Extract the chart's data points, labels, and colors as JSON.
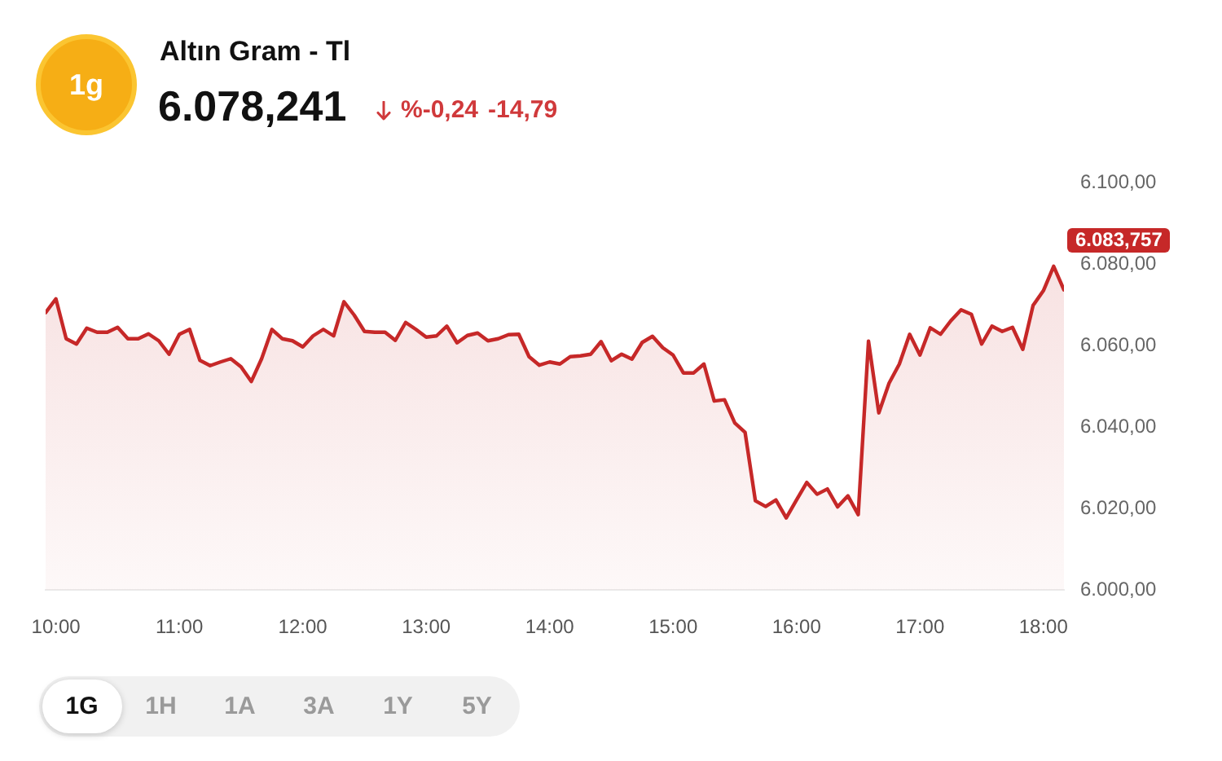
{
  "chart_data": {
    "type": "area",
    "title": "Altın Gram - Tl",
    "subtitle": "6.078,241",
    "annotations": [
      "1g",
      "%-0,24",
      "-14,79",
      "6.083,757",
      "1G",
      "1H",
      "1A",
      "3A",
      "1Y",
      "5Y"
    ],
    "x": [
      9.9167,
      10,
      10.0833,
      10.1667,
      10.25,
      10.3333,
      10.4167,
      10.5,
      10.5833,
      10.6667,
      10.75,
      10.8333,
      10.9167,
      11,
      11.0833,
      11.1667,
      11.25,
      11.3333,
      11.4167,
      11.5,
      11.5833,
      11.6667,
      11.75,
      11.8333,
      11.9167,
      12,
      12.0833,
      12.1667,
      12.25,
      12.3333,
      12.4167,
      12.5,
      12.5833,
      12.6667,
      12.75,
      12.8333,
      12.9167,
      13,
      13.0833,
      13.1667,
      13.25,
      13.3333,
      13.4167,
      13.5,
      13.5833,
      13.6667,
      13.75,
      13.8333,
      13.9167,
      14,
      14.0833,
      14.1667,
      14.25,
      14.3333,
      14.4167,
      14.5,
      14.5833,
      14.6667,
      14.75,
      14.8333,
      14.9167,
      15,
      15.0833,
      15.1667,
      15.25,
      15.3333,
      15.4167,
      15.5,
      15.5833,
      15.6667,
      15.75,
      15.8333,
      15.9167,
      16,
      16.0833,
      16.1667,
      16.25,
      16.3333,
      16.4167,
      16.5,
      16.5833,
      16.6667,
      16.75,
      16.8333,
      16.9167,
      17,
      17.0833,
      17.1667,
      17.25,
      17.3333,
      17.4167,
      17.5,
      17.5833,
      17.6667,
      17.75,
      17.8333,
      17.9167,
      18,
      18.0833,
      18.1667
    ],
    "series": [
      {
        "color": "#c62828",
        "values": [
          6068.1,
          6071.5,
          6061.7,
          6060.4,
          6064.3,
          6063.3,
          6063.3,
          6064.5,
          6061.7,
          6061.7,
          6062.9,
          6061.2,
          6057.9,
          6062.8,
          6064.0,
          6056.4,
          6055.1,
          6056.0,
          6056.8,
          6054.8,
          6051.2,
          6056.8,
          6064.0,
          6061.7,
          6061.2,
          6059.7,
          6062.4,
          6064.0,
          6062.4,
          6070.8,
          6067.5,
          6063.5,
          6063.3,
          6063.3,
          6061.3,
          6065.7,
          6064.0,
          6062.1,
          6062.4,
          6064.8,
          6060.7,
          6062.5,
          6063.1,
          6061.2,
          6061.7,
          6062.7,
          6062.8,
          6057.3,
          6055.2,
          6056.0,
          6055.5,
          6057.3,
          6057.5,
          6057.9,
          6061.0,
          6056.3,
          6057.9,
          6056.7,
          6060.8,
          6062.3,
          6059.5,
          6057.7,
          6053.3,
          6053.3,
          6055.5,
          6046.4,
          6046.7,
          6041.0,
          6038.7,
          6021.9,
          6020.5,
          6022.1,
          6017.7,
          6022.1,
          6026.4,
          6023.5,
          6024.8,
          6020.4,
          6023.1,
          6018.5,
          6061.1,
          6043.5,
          6050.8,
          6055.5,
          6062.8,
          6057.7,
          6064.4,
          6062.8,
          6066.1,
          6068.8,
          6067.7,
          6060.4,
          6064.8,
          6063.5,
          6064.5,
          6059.1,
          6069.9,
          6073.5,
          6079.5,
          6073.7
        ]
      }
    ],
    "xlim": [
      9.9167,
      18.1667
    ],
    "xticks": [
      {
        "value": 10,
        "label": "10:00"
      },
      {
        "value": 11,
        "label": "11:00"
      },
      {
        "value": 12,
        "label": "12:00"
      },
      {
        "value": 13,
        "label": "13:00"
      },
      {
        "value": 14,
        "label": "14:00"
      },
      {
        "value": 15,
        "label": "15:00"
      },
      {
        "value": 16,
        "label": "16:00"
      },
      {
        "value": 17,
        "label": "17:00"
      },
      {
        "value": 18,
        "label": "18:00"
      }
    ],
    "ylim": [
      6000,
      6100
    ],
    "yticks": [
      {
        "value": 6000,
        "label": "6.000,00"
      },
      {
        "value": 6020,
        "label": "6.020,00"
      },
      {
        "value": 6040,
        "label": "6.040,00"
      },
      {
        "value": 6060,
        "label": "6.060,00"
      },
      {
        "value": 6080,
        "label": "6.080,00"
      },
      {
        "value": 6100,
        "label": "6.100,00"
      }
    ],
    "marker": "none"
  }
}
